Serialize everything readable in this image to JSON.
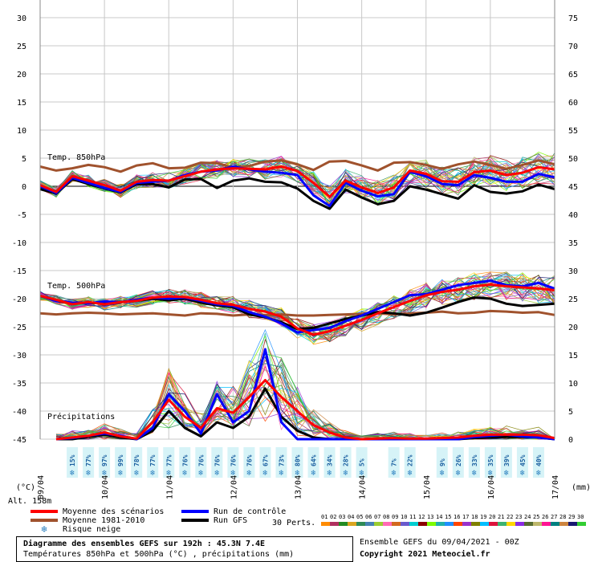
{
  "chart_data": {
    "type": "line",
    "left_axis_unit": "(°C)",
    "right_axis_unit": "(mm)",
    "left_ticks": [
      30,
      25,
      20,
      15,
      10,
      5,
      0,
      -5,
      -10,
      -15,
      -20,
      -25,
      -30,
      -35,
      -40,
      -45
    ],
    "right_ticks": [
      75,
      70,
      65,
      60,
      55,
      50,
      45,
      40,
      35,
      30,
      25,
      20,
      15,
      10,
      5,
      0
    ],
    "left_ylim": [
      -45,
      30
    ],
    "right_ylim": [
      0,
      75
    ],
    "x_date_labels": [
      "09/04",
      "10/04",
      "11/04",
      "12/04",
      "13/04",
      "14/04",
      "15/04",
      "16/04",
      "17/04"
    ],
    "x_hours_range": [
      0,
      192
    ],
    "altitude_label": "Alt. 158m",
    "section_labels": {
      "t850": "Temp. 850hPa",
      "t500": "Temp. 500hPa",
      "precip": "Précipitations"
    },
    "snow_risk": [
      {
        "h": 12,
        "pct": "15%"
      },
      {
        "h": 18,
        "pct": "77%"
      },
      {
        "h": 24,
        "pct": "97%"
      },
      {
        "h": 30,
        "pct": "99%"
      },
      {
        "h": 36,
        "pct": "78%"
      },
      {
        "h": 42,
        "pct": "77%"
      },
      {
        "h": 48,
        "pct": "77%"
      },
      {
        "h": 54,
        "pct": "76%"
      },
      {
        "h": 60,
        "pct": "76%"
      },
      {
        "h": 66,
        "pct": "76%"
      },
      {
        "h": 72,
        "pct": "76%"
      },
      {
        "h": 78,
        "pct": "76%"
      },
      {
        "h": 84,
        "pct": "67%"
      },
      {
        "h": 90,
        "pct": "73%"
      },
      {
        "h": 96,
        "pct": "80%"
      },
      {
        "h": 102,
        "pct": "64%"
      },
      {
        "h": 108,
        "pct": "34%"
      },
      {
        "h": 114,
        "pct": "28%"
      },
      {
        "h": 120,
        "pct": "5%"
      },
      {
        "h": 132,
        "pct": "7%"
      },
      {
        "h": 138,
        "pct": "22%"
      },
      {
        "h": 150,
        "pct": "9%"
      },
      {
        "h": 156,
        "pct": "26%"
      },
      {
        "h": 162,
        "pct": "33%"
      },
      {
        "h": 168,
        "pct": "35%"
      },
      {
        "h": 174,
        "pct": "39%"
      },
      {
        "h": 180,
        "pct": "45%"
      },
      {
        "h": 186,
        "pct": "40%"
      }
    ],
    "series": [
      {
        "name": "Moyenne 1981-2010",
        "role": "t850_normal",
        "color": "#a0522d",
        "x": [
          0,
          6,
          12,
          18,
          24,
          30,
          36,
          42,
          48,
          54,
          60,
          66,
          72,
          78,
          84,
          90,
          96,
          102,
          108,
          114,
          120,
          126,
          132,
          138,
          144,
          150,
          156,
          162,
          168,
          174,
          180,
          186,
          192
        ],
        "y": [
          3.5,
          2.8,
          3.2,
          3.8,
          3.4,
          2.6,
          3.7,
          4.1,
          3.2,
          3.3,
          4.2,
          4.1,
          3.3,
          3.6,
          4.4,
          4.6,
          3.9,
          2.9,
          4.4,
          4.5,
          3.7,
          2.8,
          4.2,
          4.3,
          3.8,
          3.1,
          3.9,
          4.4,
          3.8,
          3.1,
          3.8,
          4.6,
          3.9
        ]
      },
      {
        "name": "Moyenne des scénarios",
        "role": "t850_mean",
        "color": "#ff0000",
        "x": [
          0,
          6,
          12,
          18,
          24,
          30,
          36,
          42,
          48,
          54,
          60,
          66,
          72,
          78,
          84,
          90,
          96,
          102,
          108,
          114,
          120,
          126,
          132,
          138,
          144,
          150,
          156,
          162,
          168,
          174,
          180,
          186,
          192
        ],
        "y": [
          0.2,
          -1,
          1.8,
          1,
          0.2,
          -0.8,
          0.8,
          1.1,
          1,
          1.8,
          2.6,
          3,
          3.2,
          3.1,
          3,
          3.5,
          2.7,
          0.6,
          -1.9,
          1,
          -0.2,
          -1.2,
          -0.2,
          2.8,
          2.2,
          0.9,
          0.8,
          2.5,
          2.8,
          2,
          2.4,
          3.4,
          3
        ]
      },
      {
        "name": "Run de contrôle",
        "role": "t850_control",
        "color": "#0000ff",
        "x": [
          0,
          6,
          12,
          18,
          24,
          30,
          36,
          42,
          48,
          54,
          60,
          66,
          72,
          78,
          84,
          90,
          96,
          102,
          108,
          114,
          120,
          126,
          132,
          138,
          144,
          150,
          156,
          162,
          168,
          174,
          180,
          186,
          192
        ],
        "y": [
          0,
          -1.2,
          1.5,
          0.6,
          -0.3,
          -1,
          0.6,
          0.8,
          1,
          2,
          2.6,
          2.8,
          3.5,
          3,
          2.6,
          2.4,
          2,
          -1.6,
          -3.5,
          0.6,
          -0.8,
          -1.8,
          -1.4,
          2.6,
          1.8,
          0.4,
          0.2,
          2,
          1.5,
          0.8,
          0.8,
          2.2,
          1.6
        ]
      },
      {
        "name": "Run GFS",
        "role": "t850_gfs",
        "color": "#000000",
        "x": [
          0,
          6,
          12,
          18,
          24,
          30,
          36,
          42,
          48,
          54,
          60,
          66,
          72,
          78,
          84,
          90,
          96,
          102,
          108,
          114,
          120,
          126,
          132,
          138,
          144,
          150,
          156,
          162,
          168,
          174,
          180,
          186,
          192
        ],
        "y": [
          -0.5,
          -1.3,
          1.3,
          0.4,
          -0.4,
          -1.1,
          0.4,
          0.4,
          -0.2,
          1.2,
          1.3,
          -0.3,
          1,
          1.4,
          0.8,
          0.7,
          -0.4,
          -2.6,
          -4,
          -0.6,
          -2,
          -3.2,
          -2.6,
          0,
          -0.6,
          -1.4,
          -2.2,
          0.2,
          -1,
          -1.3,
          -0.9,
          0.3,
          -0.5
        ]
      },
      {
        "name": "Moyenne 1981-2010",
        "role": "t500_normal",
        "color": "#a0522d",
        "x": [
          0,
          6,
          12,
          18,
          24,
          30,
          36,
          42,
          48,
          54,
          60,
          66,
          72,
          78,
          84,
          90,
          96,
          102,
          108,
          114,
          120,
          126,
          132,
          138,
          144,
          150,
          156,
          162,
          168,
          174,
          180,
          186,
          192
        ],
        "y": [
          -22.6,
          -22.8,
          -22.6,
          -22.5,
          -22.6,
          -22.8,
          -22.7,
          -22.6,
          -22.8,
          -23,
          -22.6,
          -22.7,
          -23,
          -22.8,
          -22.9,
          -22.8,
          -23,
          -23,
          -22.9,
          -22.8,
          -22.7,
          -22.6,
          -22.8,
          -22.6,
          -22.5,
          -22.3,
          -22.6,
          -22.5,
          -22.2,
          -22.3,
          -22.5,
          -22.4,
          -22.9
        ]
      },
      {
        "name": "Moyenne des scénarios",
        "role": "t500_mean",
        "color": "#ff0000",
        "x": [
          0,
          6,
          12,
          18,
          24,
          30,
          36,
          42,
          48,
          54,
          60,
          66,
          72,
          78,
          84,
          90,
          96,
          102,
          108,
          114,
          120,
          126,
          132,
          138,
          144,
          150,
          156,
          162,
          168,
          174,
          180,
          186,
          192
        ],
        "y": [
          -19.5,
          -20.2,
          -21,
          -20.6,
          -21,
          -20.6,
          -20.4,
          -19.8,
          -19.6,
          -19.7,
          -20.2,
          -20.8,
          -21.1,
          -21.8,
          -22.3,
          -23.2,
          -25.3,
          -26.4,
          -25.8,
          -24.8,
          -23.8,
          -22.6,
          -21.5,
          -20.4,
          -19.4,
          -18.8,
          -18.4,
          -17.8,
          -17.5,
          -17.8,
          -18,
          -18.2,
          -18.5
        ]
      },
      {
        "name": "Run de contrôle",
        "role": "t500_control",
        "color": "#0000ff",
        "x": [
          0,
          6,
          12,
          18,
          24,
          30,
          36,
          42,
          48,
          54,
          60,
          66,
          72,
          78,
          84,
          90,
          96,
          102,
          108,
          114,
          120,
          126,
          132,
          138,
          144,
          150,
          156,
          162,
          168,
          174,
          180,
          186,
          192
        ],
        "y": [
          -19.5,
          -20.4,
          -20.7,
          -20.8,
          -20.5,
          -20.6,
          -20.2,
          -19.8,
          -20,
          -19.8,
          -20.4,
          -21,
          -21.3,
          -22.4,
          -23.2,
          -24.4,
          -26,
          -25.6,
          -25.2,
          -24,
          -23,
          -21.8,
          -20.6,
          -19.4,
          -19.2,
          -18.4,
          -17.6,
          -17.2,
          -16.8,
          -17.6,
          -17.8,
          -17.2,
          -18.2
        ]
      },
      {
        "name": "Run GFS",
        "role": "t500_gfs",
        "color": "#000000",
        "x": [
          0,
          6,
          12,
          18,
          24,
          30,
          36,
          42,
          48,
          54,
          60,
          66,
          72,
          78,
          84,
          90,
          96,
          102,
          108,
          114,
          120,
          126,
          132,
          138,
          144,
          150,
          156,
          162,
          168,
          174,
          180,
          186,
          192
        ],
        "y": [
          -19.5,
          -20.4,
          -20.8,
          -20.8,
          -20.7,
          -20.6,
          -20.4,
          -20,
          -20.3,
          -20,
          -20.7,
          -21.2,
          -21.5,
          -22.8,
          -23.3,
          -24.2,
          -25.4,
          -25.2,
          -24.4,
          -23.6,
          -23,
          -22.4,
          -22.6,
          -23,
          -22.5,
          -21.6,
          -20.6,
          -19.8,
          -20,
          -20.9,
          -21.3,
          -21.1,
          -20.9
        ]
      },
      {
        "name": "Moyenne des scénarios",
        "role": "precip_mean",
        "color": "#ff0000",
        "x": [
          6,
          12,
          18,
          24,
          30,
          36,
          42,
          48,
          54,
          60,
          66,
          72,
          78,
          84,
          90,
          96,
          102,
          108,
          114,
          120,
          126,
          132,
          138,
          144,
          150,
          156,
          162,
          168,
          174,
          180,
          186,
          192
        ],
        "y": [
          0,
          0.3,
          0.6,
          1.2,
          0.5,
          0.1,
          3,
          7,
          4,
          2,
          5.5,
          4.7,
          7.5,
          10.5,
          7.5,
          5,
          2.5,
          1.2,
          0.3,
          0,
          0.1,
          0.2,
          0.1,
          0.1,
          0.2,
          0.3,
          0.6,
          0.8,
          0.8,
          0.8,
          0.7,
          0.2
        ]
      },
      {
        "name": "Run de contrôle",
        "role": "precip_control",
        "color": "#0000ff",
        "x": [
          6,
          12,
          18,
          24,
          30,
          36,
          42,
          48,
          54,
          60,
          66,
          72,
          78,
          84,
          90,
          96,
          102,
          108,
          114,
          120,
          126,
          132,
          138,
          144,
          150,
          156,
          162,
          168,
          174,
          180,
          186,
          192
        ],
        "y": [
          0,
          0.2,
          0.6,
          1,
          0.6,
          0,
          2,
          8,
          5,
          1,
          8,
          3,
          5,
          16,
          3,
          0,
          0,
          0,
          0,
          0,
          0,
          0,
          0,
          0,
          0,
          0,
          0.4,
          0.6,
          0.8,
          0.5,
          0.3,
          0
        ]
      },
      {
        "name": "Run GFS",
        "role": "precip_gfs",
        "color": "#000000",
        "x": [
          6,
          12,
          18,
          24,
          30,
          36,
          42,
          48,
          54,
          60,
          66,
          72,
          78,
          84,
          90,
          96,
          102,
          108,
          114,
          120,
          126,
          132,
          138,
          144,
          150,
          156,
          162,
          168,
          174,
          180,
          186,
          192
        ],
        "y": [
          0,
          0,
          0.4,
          0.8,
          0.3,
          0,
          1.5,
          5,
          2,
          0.5,
          3,
          2,
          4,
          9,
          4,
          1.5,
          0.3,
          0,
          0,
          0,
          0,
          0,
          0,
          0,
          0,
          0,
          0.2,
          0.3,
          0.4,
          0.4,
          0.3,
          0
        ]
      }
    ],
    "legend": [
      {
        "label": "Moyenne des scénarios",
        "color": "#ff0000",
        "kind": "line"
      },
      {
        "label": "Moyenne 1981-2010",
        "color": "#a0522d",
        "kind": "line"
      },
      {
        "label": "Risque neige",
        "color": "#2a7fbf",
        "kind": "snow"
      },
      {
        "label": "Run de contrôle",
        "color": "#0000ff",
        "kind": "line"
      },
      {
        "label": "Run GFS",
        "color": "#000000",
        "kind": "line"
      }
    ],
    "perturbations": {
      "label": "30 Perts.",
      "ids": [
        "01",
        "02",
        "03",
        "04",
        "05",
        "06",
        "07",
        "08",
        "09",
        "10",
        "11",
        "12",
        "13",
        "14",
        "15",
        "16",
        "17",
        "18",
        "19",
        "20",
        "21",
        "22",
        "23",
        "24",
        "25",
        "26",
        "27",
        "28",
        "29",
        "30"
      ],
      "colors": [
        "#ff8c00",
        "#b03060",
        "#228b22",
        "#daa520",
        "#2e8b57",
        "#4682b4",
        "#9acd32",
        "#ff69b4",
        "#d2691e",
        "#6a5acd",
        "#00ced1",
        "#8b0000",
        "#7cfc00",
        "#20b2aa",
        "#1e90ff",
        "#ff4500",
        "#9932cc",
        "#808000",
        "#00bfff",
        "#dc143c",
        "#3cb371",
        "#ffd700",
        "#8a2be2",
        "#556b2f",
        "#bdb76b",
        "#ff1493",
        "#008080",
        "#cd853f",
        "#191970",
        "#32cd32"
      ]
    }
  },
  "footer": {
    "title": "Diagramme des ensembles GEFS sur 192h : 45.3N 7.4E",
    "subtitle": "Températures 850hPa et 500hPa (°C) , précipitations (mm)",
    "run": "Ensemble GEFS du 09/04/2021 - 00Z",
    "copyright": "Copyright 2021 Meteociel.fr"
  }
}
